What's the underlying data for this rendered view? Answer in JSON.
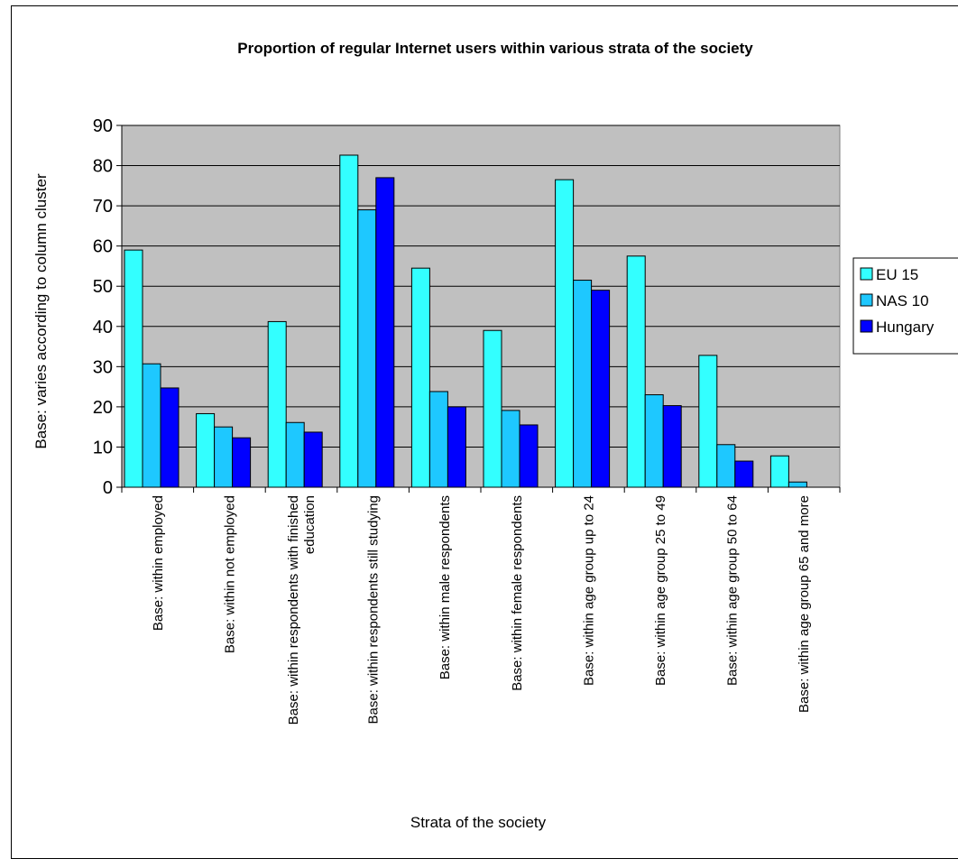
{
  "chart_data": {
    "type": "bar",
    "title": "Proportion of regular Internet users within various strata of the society",
    "xlabel": "Strata of the society",
    "ylabel": "Base: varies according to column cluster",
    "ylim": [
      0,
      90
    ],
    "yticks": [
      0,
      10,
      20,
      30,
      40,
      50,
      60,
      70,
      80,
      90
    ],
    "grid": true,
    "legend_position": "right",
    "categories": [
      [
        "Base: within employed"
      ],
      [
        "Base: within not employed"
      ],
      [
        "Base: within respondents with finished",
        "education"
      ],
      [
        "Base: within respondents still studying"
      ],
      [
        "Base: within male respondents"
      ],
      [
        "Base: within female respondents"
      ],
      [
        "Base: within age group up to 24"
      ],
      [
        "Base: within age group 25 to 49"
      ],
      [
        "Base: within age group 50 to 64"
      ],
      [
        "Base: within age group 65 and more"
      ]
    ],
    "series": [
      {
        "name": "EU 15",
        "color": "#33ffff",
        "values": [
          59,
          18.3,
          41.2,
          82.6,
          54.5,
          39,
          76.5,
          57.5,
          32.8,
          7.8
        ]
      },
      {
        "name": "NAS 10",
        "color": "#1ec8ff",
        "values": [
          30.7,
          15,
          16.1,
          69,
          23.8,
          19.1,
          51.5,
          23,
          10.6,
          1.3
        ]
      },
      {
        "name": "Hungary",
        "color": "#0000ff",
        "values": [
          24.7,
          12.3,
          13.7,
          77,
          20,
          15.5,
          49,
          20.3,
          6.5,
          0
        ]
      }
    ],
    "plot_background": "#c0c0c0"
  }
}
